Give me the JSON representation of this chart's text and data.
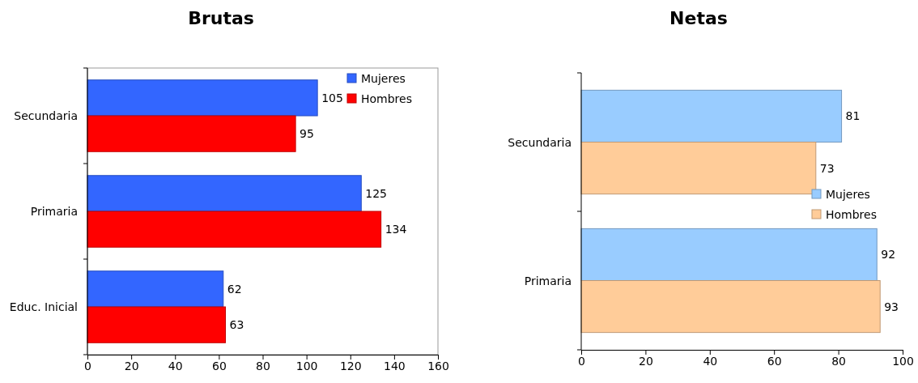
{
  "chart_data": [
    {
      "type": "bar",
      "title": "Brutas",
      "orientation": "horizontal",
      "categories": [
        "Secundaria",
        "Primaria",
        "Educ. Inicial"
      ],
      "series": [
        {
          "name": "Mujeres",
          "color": "#3366ff",
          "values": [
            105,
            125,
            62
          ]
        },
        {
          "name": "Hombres",
          "color": "#ff0000",
          "values": [
            95,
            134,
            63
          ]
        }
      ],
      "xlim": [
        0,
        160
      ],
      "xticks": [
        0,
        20,
        40,
        60,
        80,
        100,
        120,
        140,
        160
      ],
      "grid": false,
      "legend": "top right",
      "data_labels": true
    },
    {
      "type": "bar",
      "title": "Netas",
      "orientation": "horizontal",
      "categories": [
        "Secundaria",
        "Primaria"
      ],
      "series": [
        {
          "name": "Mujeres",
          "color": "#99ccff",
          "values": [
            81,
            92
          ]
        },
        {
          "name": "Hombres",
          "color": "#ffcc99",
          "values": [
            73,
            93
          ]
        }
      ],
      "xlim": [
        0,
        100
      ],
      "xticks": [
        0,
        20,
        40,
        60,
        80,
        100
      ],
      "grid": false,
      "legend": "right",
      "data_labels": true
    }
  ]
}
